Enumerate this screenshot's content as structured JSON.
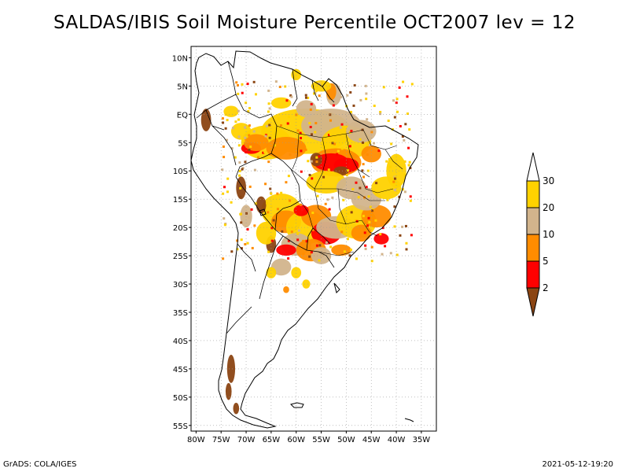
{
  "title": "SALDAS/IBIS Soil Moisture Percentile OCT2007 lev = 12",
  "footer": {
    "left": "GrADS: COLA/IGES",
    "right": "2021-05-12-19:20"
  },
  "map": {
    "lon_range": [
      -81,
      -32
    ],
    "lat_range": [
      -56,
      12
    ],
    "lat_ticks": [
      {
        "value": 10,
        "label": "10N"
      },
      {
        "value": 5,
        "label": "5N"
      },
      {
        "value": 0,
        "label": "EQ"
      },
      {
        "value": -5,
        "label": "5S"
      },
      {
        "value": -10,
        "label": "10S"
      },
      {
        "value": -15,
        "label": "15S"
      },
      {
        "value": -20,
        "label": "20S"
      },
      {
        "value": -25,
        "label": "25S"
      },
      {
        "value": -30,
        "label": "30S"
      },
      {
        "value": -35,
        "label": "35S"
      },
      {
        "value": -40,
        "label": "40S"
      },
      {
        "value": -45,
        "label": "45S"
      },
      {
        "value": -50,
        "label": "50S"
      },
      {
        "value": -55,
        "label": "55S"
      }
    ],
    "lon_ticks": [
      {
        "value": -80,
        "label": "80W"
      },
      {
        "value": -75,
        "label": "75W"
      },
      {
        "value": -70,
        "label": "70W"
      },
      {
        "value": -65,
        "label": "65W"
      },
      {
        "value": -60,
        "label": "60W"
      },
      {
        "value": -55,
        "label": "55W"
      },
      {
        "value": -50,
        "label": "50W"
      },
      {
        "value": -45,
        "label": "45W"
      },
      {
        "value": -40,
        "label": "40W"
      },
      {
        "value": -35,
        "label": "35W"
      }
    ]
  },
  "legend": {
    "bins": [
      {
        "label": "30",
        "color": "#ffd200"
      },
      {
        "label": "20",
        "color": "#d2b48c"
      },
      {
        "label": "10",
        "color": "#ff8c00"
      },
      {
        "label": "5",
        "color": "#ff0000"
      },
      {
        "label": "2",
        "color": "#8b4513"
      }
    ],
    "top_color": "#ffffff"
  },
  "colors": {
    "ge30": "#ffd200",
    "c20": "#d2b48c",
    "c10": "#ff8c00",
    "c5": "#ff0000",
    "lt2": "#8b4513"
  }
}
